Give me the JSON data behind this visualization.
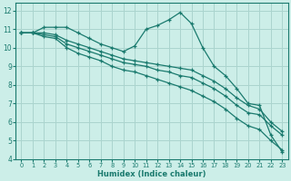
{
  "xlabel": "Humidex (Indice chaleur)",
  "bg_color": "#cceee8",
  "grid_color": "#aad4ce",
  "line_color": "#1a7a6e",
  "xlim": [
    -0.5,
    23.5
  ],
  "ylim": [
    4,
    12.4
  ],
  "xticks": [
    0,
    1,
    2,
    3,
    4,
    5,
    6,
    7,
    8,
    9,
    10,
    11,
    12,
    13,
    14,
    15,
    16,
    17,
    18,
    19,
    20,
    21,
    22,
    23
  ],
  "yticks": [
    4,
    5,
    6,
    7,
    8,
    9,
    10,
    11,
    12
  ],
  "lines": [
    {
      "x": [
        0,
        1,
        2,
        3,
        4,
        5,
        6,
        7,
        8,
        9,
        10,
        11,
        12,
        13,
        14,
        15,
        16,
        17,
        18,
        19,
        20,
        21,
        22,
        23
      ],
      "y": [
        10.8,
        10.8,
        11.1,
        11.1,
        11.1,
        10.8,
        10.5,
        10.2,
        10.0,
        9.8,
        10.1,
        11.0,
        11.2,
        11.5,
        11.9,
        11.3,
        10.0,
        9.0,
        8.5,
        7.8,
        7.0,
        6.9,
        5.3,
        4.4
      ]
    },
    {
      "x": [
        0,
        1,
        2,
        3,
        4,
        5,
        6,
        7,
        8,
        9,
        10,
        11,
        12,
        13,
        14,
        15,
        16,
        17,
        18,
        19,
        20,
        21,
        22,
        23
      ],
      "y": [
        10.8,
        10.8,
        10.8,
        10.7,
        10.4,
        10.2,
        10.0,
        9.8,
        9.6,
        9.4,
        9.3,
        9.2,
        9.1,
        9.0,
        8.9,
        8.8,
        8.5,
        8.2,
        7.8,
        7.3,
        6.9,
        6.7,
        6.0,
        5.5
      ]
    },
    {
      "x": [
        0,
        1,
        2,
        3,
        4,
        5,
        6,
        7,
        8,
        9,
        10,
        11,
        12,
        13,
        14,
        15,
        16,
        17,
        18,
        19,
        20,
        21,
        22,
        23
      ],
      "y": [
        10.8,
        10.8,
        10.7,
        10.6,
        10.2,
        10.0,
        9.8,
        9.6,
        9.4,
        9.2,
        9.1,
        9.0,
        8.8,
        8.7,
        8.5,
        8.4,
        8.1,
        7.8,
        7.4,
        6.9,
        6.5,
        6.4,
        5.8,
        5.3
      ]
    },
    {
      "x": [
        0,
        1,
        2,
        3,
        4,
        5,
        6,
        7,
        8,
        9,
        10,
        11,
        12,
        13,
        14,
        15,
        16,
        17,
        18,
        19,
        20,
        21,
        22,
        23
      ],
      "y": [
        10.8,
        10.8,
        10.6,
        10.5,
        10.0,
        9.7,
        9.5,
        9.3,
        9.0,
        8.8,
        8.7,
        8.5,
        8.3,
        8.1,
        7.9,
        7.7,
        7.4,
        7.1,
        6.7,
        6.2,
        5.8,
        5.6,
        5.0,
        4.5
      ]
    }
  ]
}
